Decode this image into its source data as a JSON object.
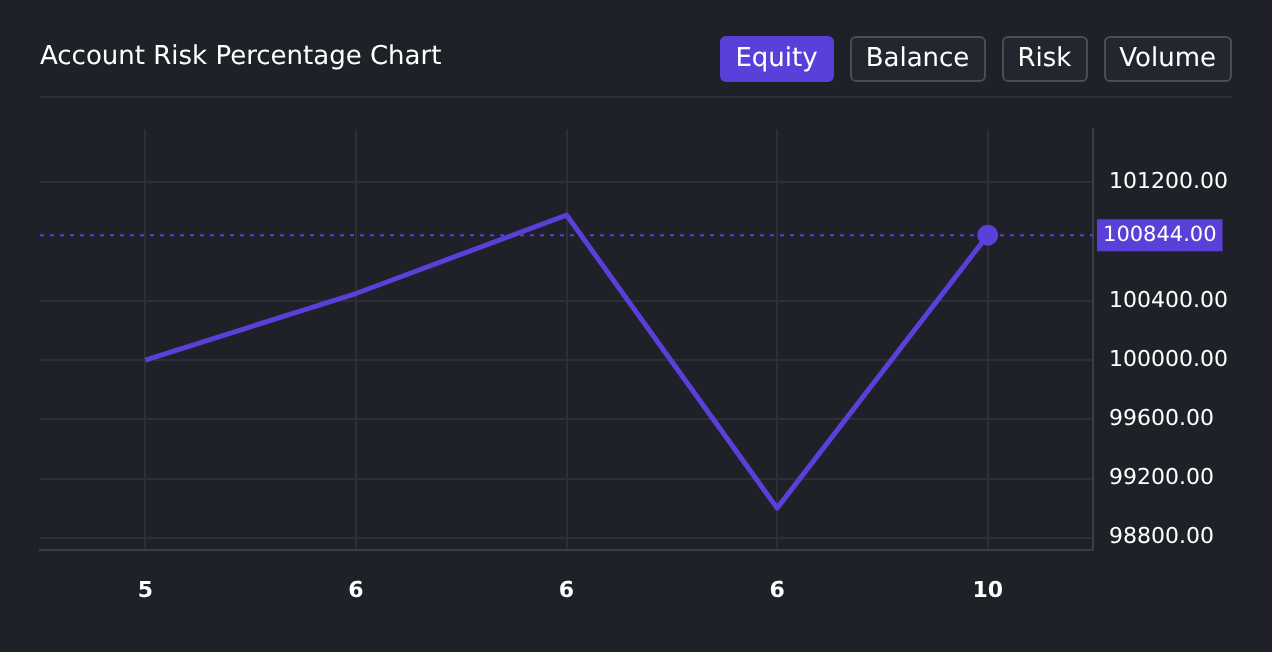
{
  "chart_data": {
    "type": "line",
    "title": "Account Risk Percentage Chart",
    "categories": [
      "5",
      "6",
      "6",
      "6",
      "10"
    ],
    "series": [
      {
        "name": "Equity",
        "color": "#5b3fd9",
        "values": [
          100000,
          100450,
          100980,
          99000,
          100844
        ]
      }
    ],
    "ylim": [
      98720,
      101560
    ],
    "yticks": [
      {
        "value": 98800,
        "label": "98800.00"
      },
      {
        "value": 99200,
        "label": "99200.00"
      },
      {
        "value": 99600,
        "label": "99600.00"
      },
      {
        "value": 100000,
        "label": "100000.00"
      },
      {
        "value": 100400,
        "label": "100400.00"
      },
      {
        "value": 101200,
        "label": "101200.00"
      }
    ],
    "ref_lines": [
      {
        "axis": "y",
        "value": 100844,
        "label": "100844.00",
        "color": "#5b3fd9",
        "line_style": "dotted"
      }
    ],
    "annotations": [
      "Balance",
      "Risk",
      "Volume"
    ],
    "grid": true,
    "legend": "top right",
    "marker": "none",
    "line_style": "solid"
  }
}
